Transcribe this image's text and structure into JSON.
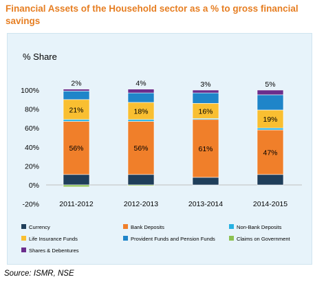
{
  "title": "Financial Assets of the Household sector as a % to gross financial savings",
  "source": "Source: ISMR, NSE",
  "colors": {
    "Currency": "#1f3e5a",
    "Bank Deposits": "#f07f2a",
    "Non-Bank Deposits": "#26b1e2",
    "Life Insurance Funds": "#f9bf31",
    "Provident Funds and Pension Funds": "#1f85c9",
    "Claims on Government": "#8cc152",
    "Shares & Debentures": "#6b2d8c"
  },
  "chart_data": {
    "type": "bar",
    "stacked": true,
    "ylabel": "% Share",
    "ylim": [
      -20,
      100
    ],
    "yticks": [
      "-20%",
      "0%",
      "20%",
      "40%",
      "60%",
      "80%",
      "100%"
    ],
    "categories": [
      "2011-2012",
      "2012-2013",
      "2013-2014",
      "2014-2015"
    ],
    "series": [
      {
        "name": "Currency",
        "values": [
          11,
          11,
          8,
          11
        ]
      },
      {
        "name": "Bank Deposits",
        "values": [
          56,
          56,
          61,
          47
        ]
      },
      {
        "name": "Non-Bank Deposits",
        "values": [
          2,
          2,
          1,
          2
        ]
      },
      {
        "name": "Life Insurance Funds",
        "values": [
          21,
          18,
          16,
          19
        ]
      },
      {
        "name": "Provident Funds and Pension Funds",
        "values": [
          9,
          10,
          11,
          16
        ]
      },
      {
        "name": "Claims on Government",
        "values": [
          -2,
          -1,
          0,
          0
        ]
      },
      {
        "name": "Shares & Debentures",
        "values": [
          2,
          4,
          3,
          5
        ]
      }
    ],
    "data_labels": [
      {
        "series": "Bank Deposits",
        "labels": [
          "56%",
          "56%",
          "61%",
          "47%"
        ]
      },
      {
        "series": "Life Insurance Funds",
        "labels": [
          "21%",
          "18%",
          "16%",
          "19%"
        ]
      },
      {
        "series": "Shares & Debentures",
        "labels": [
          "2%",
          "4%",
          "3%",
          "5%"
        ]
      }
    ],
    "legend": {
      "placement": "bottom",
      "items": [
        "Currency",
        "Bank Deposits",
        "Non-Bank Deposits",
        "Life Insurance Funds",
        "Provident Funds and Pension Funds",
        "Claims on Government",
        "Shares & Debentures"
      ]
    },
    "grid": false
  }
}
